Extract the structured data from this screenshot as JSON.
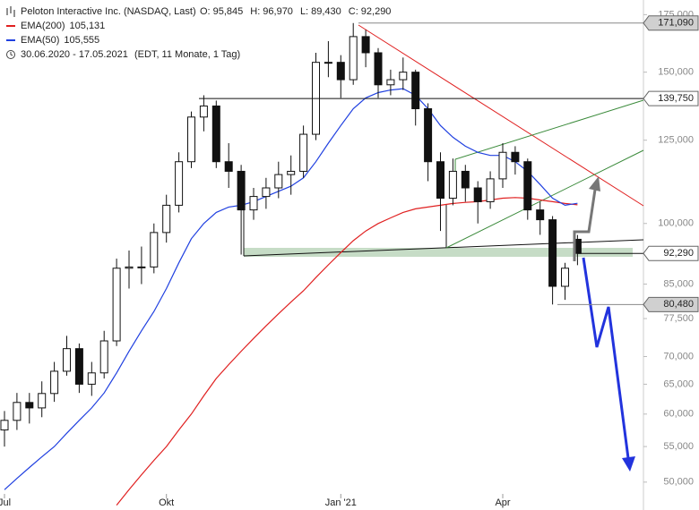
{
  "chart_data": {
    "type": "candlestick",
    "title": "Peloton Interactive Inc. (NASDAQ, Last)",
    "ohlc_labels": [
      {
        "name": "O:",
        "value": 95845,
        "label": "95,845"
      },
      {
        "name": "H:",
        "value": 96970,
        "label": "96,970"
      },
      {
        "name": "L:",
        "value": 89430,
        "label": "89,430"
      },
      {
        "name": "C:",
        "value": 92290,
        "label": "92,290"
      }
    ],
    "period": "30.06.2020 - 17.05.2021",
    "period_note": "(EDT, 11 Monate, 1 Tag)",
    "log": true,
    "categories": [
      "Jul",
      null,
      null,
      null,
      null,
      null,
      null,
      null,
      null,
      null,
      null,
      null,
      null,
      "Okt",
      null,
      null,
      null,
      null,
      null,
      null,
      null,
      null,
      null,
      null,
      null,
      null,
      null,
      "Jan '21",
      null,
      null,
      null,
      null,
      null,
      null,
      null,
      null,
      null,
      null,
      null,
      null,
      "Apr",
      null,
      null,
      null,
      null,
      null,
      null
    ],
    "open": [
      57500,
      59000,
      61900,
      61000,
      63400,
      67300,
      71500,
      65000,
      67000,
      73000,
      88700,
      89000,
      89000,
      97600,
      105000,
      118000,
      133000,
      137000,
      118000,
      115000,
      103700,
      107500,
      110000,
      114000,
      115000,
      127000,
      154000,
      154000,
      147000,
      165000,
      158000,
      145000,
      147000,
      150000,
      136000,
      118000,
      107000,
      115000,
      110000,
      106000,
      112700,
      121000,
      118000,
      103700,
      101000,
      84500,
      95845
    ],
    "high": [
      60500,
      63500,
      63500,
      65500,
      69000,
      74000,
      72500,
      69000,
      75000,
      91000,
      93000,
      94000,
      100000,
      108000,
      121000,
      135000,
      141000,
      139000,
      124000,
      117000,
      110000,
      113000,
      118000,
      120000,
      130000,
      158000,
      163000,
      157000,
      171090,
      168000,
      160000,
      151000,
      156000,
      151000,
      138000,
      121000,
      119000,
      117000,
      112000,
      115000,
      124000,
      123000,
      119000,
      106000,
      102000,
      90000,
      96970
    ],
    "low": [
      55000,
      57500,
      58500,
      59500,
      62000,
      66500,
      63500,
      63000,
      66000,
      72000,
      84000,
      85000,
      87500,
      95000,
      103000,
      116000,
      128000,
      116000,
      110000,
      92000,
      101000,
      104000,
      107000,
      108000,
      113000,
      125000,
      148000,
      140000,
      145000,
      152000,
      140000,
      141000,
      143000,
      130000,
      112000,
      98000,
      105000,
      106000,
      100000,
      104000,
      110000,
      114000,
      101000,
      97000,
      80480,
      81500,
      89430
    ],
    "close": [
      59000,
      61900,
      61000,
      63400,
      67300,
      71500,
      65000,
      67000,
      73000,
      88700,
      89000,
      89000,
      97600,
      105000,
      118000,
      133000,
      137000,
      118000,
      115000,
      103700,
      107500,
      110000,
      114000,
      115000,
      127000,
      154000,
      154000,
      147000,
      165000,
      158000,
      145000,
      147000,
      150000,
      136000,
      118000,
      107000,
      115000,
      110000,
      106000,
      112700,
      121000,
      118000,
      103700,
      101000,
      84500,
      88700,
      92290
    ],
    "series": [
      {
        "name": "EMA(200)",
        "color": "#e02020",
        "legend_value": {
          "value": 105131,
          "label": "105,131"
        },
        "values": [
          null,
          null,
          null,
          null,
          null,
          null,
          null,
          null,
          null,
          47000,
          49000,
          51000,
          53000,
          55000,
          57500,
          60000,
          63000,
          66000,
          68500,
          71000,
          73500,
          76000,
          78500,
          81000,
          83500,
          86500,
          89500,
          92500,
          95500,
          98000,
          100000,
          101500,
          103000,
          104000,
          104500,
          105000,
          105500,
          105800,
          106000,
          106500,
          107000,
          107200,
          107000,
          106500,
          106000,
          105500,
          105131
        ]
      },
      {
        "name": "EMA(50)",
        "color": "#2040e0",
        "legend_value": {
          "value": 105555,
          "label": "105,555"
        },
        "values": [
          49000,
          50500,
          52000,
          53500,
          55000,
          57000,
          59000,
          61000,
          63500,
          67000,
          71000,
          75000,
          79000,
          84000,
          90000,
          96000,
          100000,
          103000,
          104500,
          105000,
          106000,
          107500,
          109000,
          110500,
          113000,
          118000,
          124000,
          130000,
          136000,
          140000,
          142000,
          143000,
          143500,
          141000,
          136000,
          130000,
          126000,
          123000,
          121000,
          120000,
          120000,
          118000,
          115000,
          111000,
          107000,
          105000,
          105555
        ]
      }
    ],
    "price_labels": [
      {
        "value": 171090,
        "label": "171,090",
        "color": "#d0d0d0"
      },
      {
        "value": 139750,
        "label": "139,750",
        "color": "#ffffff"
      },
      {
        "value": 92290,
        "label": "92,290",
        "color": "#ffffff"
      },
      {
        "value": 80480,
        "label": "80,480",
        "color": "#d0d0d0"
      }
    ],
    "ylim": [
      46400,
      182000
    ],
    "yticks": [
      {
        "value": 50000,
        "label": "50,000"
      },
      {
        "value": 55000,
        "label": "55,000"
      },
      {
        "value": 60000,
        "label": "60,000"
      },
      {
        "value": 65000,
        "label": "65,000"
      },
      {
        "value": 70000,
        "label": "70,000"
      },
      {
        "value": 77500,
        "label": "77,500"
      },
      {
        "value": 85000,
        "label": "85,000"
      },
      {
        "value": 100000,
        "label": "100,000"
      },
      {
        "value": 125000,
        "label": "125,000"
      },
      {
        "value": 150000,
        "label": "150,000"
      },
      {
        "value": 175000,
        "label": "175,000"
      }
    ]
  }
}
